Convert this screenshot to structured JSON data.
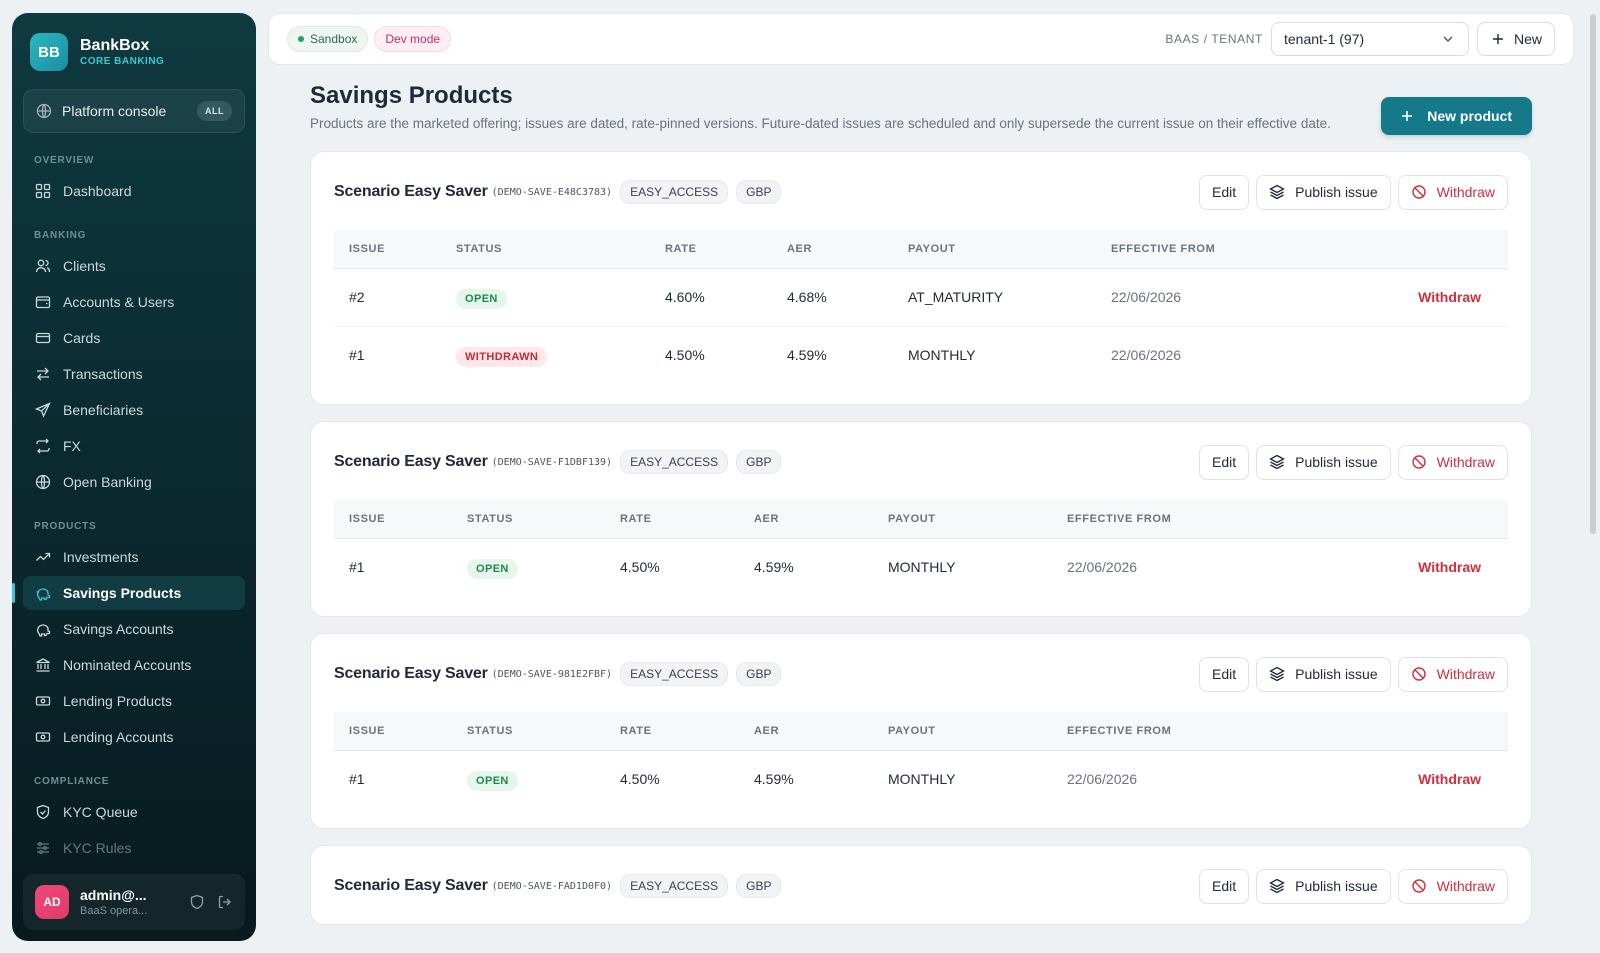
{
  "brand": {
    "logo": "BB",
    "name": "BankBox",
    "subtitle": "CORE BANKING"
  },
  "console": {
    "label": "Platform console",
    "badge": "ALL"
  },
  "sections": {
    "overview": "OVERVIEW",
    "banking": "BANKING",
    "products": "PRODUCTS",
    "compliance": "COMPLIANCE"
  },
  "nav": {
    "dashboard": "Dashboard",
    "clients": "Clients",
    "accounts_users": "Accounts & Users",
    "cards": "Cards",
    "transactions": "Transactions",
    "beneficiaries": "Beneficiaries",
    "fx": "FX",
    "open_banking": "Open Banking",
    "investments": "Investments",
    "savings_products": "Savings Products",
    "savings_accounts": "Savings Accounts",
    "nominated_accounts": "Nominated Accounts",
    "lending_products": "Lending Products",
    "lending_accounts": "Lending Accounts",
    "kyc_queue": "KYC Queue",
    "kyc_rules": "KYC Rules"
  },
  "user": {
    "initials": "AD",
    "name": "admin@...",
    "role": "BaaS opera..."
  },
  "topbar": {
    "sandbox": "Sandbox",
    "dev_mode": "Dev mode",
    "tenant_label": "BAAS / TENANT",
    "tenant_value": "tenant-1 (97)",
    "new_label": "New"
  },
  "page": {
    "title": "Savings Products",
    "description": "Products are the marketed offering; issues are dated, rate-pinned versions. Future-dated issues are scheduled and only supersede the current issue on their effective date.",
    "new_product": "New product"
  },
  "columns": {
    "issue": "ISSUE",
    "status": "STATUS",
    "rate": "RATE",
    "aer": "AER",
    "payout": "PAYOUT",
    "effective": "EFFECTIVE FROM"
  },
  "actions": {
    "edit": "Edit",
    "publish": "Publish issue",
    "withdraw": "Withdraw"
  },
  "products": [
    {
      "name": "Scenario Easy Saver",
      "code": "(DEMO-SAVE-E48C3783)",
      "tag1": "EASY_ACCESS",
      "tag2": "GBP",
      "issues": [
        {
          "issue": "#2",
          "status": "OPEN",
          "rate": "4.60%",
          "aer": "4.68%",
          "payout": "AT_MATURITY",
          "effective": "22/06/2026",
          "action": "Withdraw"
        },
        {
          "issue": "#1",
          "status": "WITHDRAWN",
          "rate": "4.50%",
          "aer": "4.59%",
          "payout": "MONTHLY",
          "effective": "22/06/2026",
          "action": ""
        }
      ]
    },
    {
      "name": "Scenario Easy Saver",
      "code": "(DEMO-SAVE-F1DBF139)",
      "tag1": "EASY_ACCESS",
      "tag2": "GBP",
      "issues": [
        {
          "issue": "#1",
          "status": "OPEN",
          "rate": "4.50%",
          "aer": "4.59%",
          "payout": "MONTHLY",
          "effective": "22/06/2026",
          "action": "Withdraw"
        }
      ]
    },
    {
      "name": "Scenario Easy Saver",
      "code": "(DEMO-SAVE-981E2FBF)",
      "tag1": "EASY_ACCESS",
      "tag2": "GBP",
      "issues": [
        {
          "issue": "#1",
          "status": "OPEN",
          "rate": "4.50%",
          "aer": "4.59%",
          "payout": "MONTHLY",
          "effective": "22/06/2026",
          "action": "Withdraw"
        }
      ]
    },
    {
      "name": "Scenario Easy Saver",
      "code": "(DEMO-SAVE-FAD1D0F0)",
      "tag1": "EASY_ACCESS",
      "tag2": "GBP",
      "issues": []
    }
  ],
  "colors": {
    "accent": "#16798a",
    "danger": "#d12f3b",
    "open": "#1f8a4c",
    "sidebar": "#0b2b31"
  }
}
